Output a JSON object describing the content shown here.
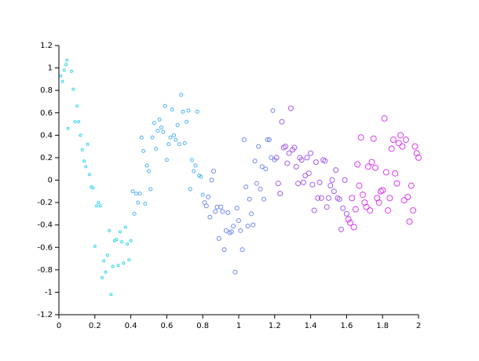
{
  "chart_data": {
    "type": "scatter",
    "xlim": [
      0,
      2
    ],
    "xticks": [
      0,
      0.2,
      0.4,
      0.6,
      0.8,
      1,
      1.2,
      1.4,
      1.6,
      1.8,
      2
    ],
    "ylim": [
      -1.2,
      1.2
    ],
    "yticks": [
      -1.2,
      -1,
      -0.8,
      -0.6,
      -0.4,
      -0.2,
      0,
      0.2,
      0.4,
      0.6,
      0.8,
      1,
      1.2
    ],
    "grid": false,
    "series": [
      {
        "color": "#33d6ee",
        "marker_size": 1.5,
        "x": [
          0.01,
          0.02,
          0.03,
          0.04,
          0.045,
          0.05,
          0.07,
          0.08,
          0.09,
          0.1,
          0.11,
          0.12,
          0.13,
          0.14,
          0.15,
          0.16,
          0.17,
          0.18,
          0.19,
          0.2,
          0.21,
          0.22,
          0.23,
          0.24,
          0.25,
          0.26,
          0.27,
          0.28,
          0.29,
          0.3,
          0.31,
          0.32,
          0.33,
          0.34,
          0.35,
          0.36,
          0.37,
          0.38,
          0.39,
          0.4
        ],
        "y": [
          0.93,
          0.88,
          0.98,
          1.03,
          1.07,
          0.46,
          0.97,
          0.81,
          0.52,
          0.66,
          0.52,
          0.4,
          0.27,
          0.17,
          0.12,
          0.32,
          0.05,
          -0.06,
          -0.07,
          -0.59,
          -0.23,
          -0.2,
          -0.23,
          -0.87,
          -0.72,
          -0.82,
          -0.67,
          -0.45,
          -1.02,
          -0.77,
          -0.54,
          -0.53,
          -0.76,
          -0.46,
          -0.55,
          -0.74,
          -0.42,
          -0.57,
          -0.71,
          -0.54
        ]
      },
      {
        "color": "#4fb2f0",
        "marker_size": 2,
        "x": [
          0.41,
          0.42,
          0.43,
          0.44,
          0.45,
          0.46,
          0.47,
          0.48,
          0.49,
          0.5,
          0.51,
          0.52,
          0.53,
          0.54,
          0.55,
          0.56,
          0.57,
          0.58,
          0.59,
          0.6,
          0.61,
          0.62,
          0.63,
          0.64,
          0.65,
          0.66,
          0.67,
          0.68,
          0.69,
          0.7,
          0.71,
          0.72,
          0.73,
          0.74,
          0.75,
          0.76,
          0.77,
          0.78,
          0.79,
          0.8
        ],
        "y": [
          -0.1,
          -0.3,
          -0.12,
          -0.2,
          -0.12,
          0.38,
          0.26,
          -0.21,
          0.13,
          0.08,
          -0.08,
          0.38,
          0.51,
          0.28,
          0.44,
          0.54,
          0.47,
          0.43,
          0.66,
          0.18,
          0.32,
          0.38,
          0.63,
          0.4,
          0.36,
          0.49,
          0.32,
          0.76,
          0.61,
          0.33,
          0.52,
          0.62,
          -0.08,
          0.18,
          0.08,
          0.13,
          0.61,
          0.04,
          0.03,
          -0.13
        ]
      },
      {
        "color": "#6f86ee",
        "marker_size": 2.5,
        "x": [
          0.81,
          0.82,
          0.83,
          0.84,
          0.85,
          0.86,
          0.87,
          0.88,
          0.89,
          0.9,
          0.91,
          0.92,
          0.93,
          0.94,
          0.95,
          0.96,
          0.97,
          0.98,
          0.99,
          1.0,
          1.01,
          1.02,
          1.03,
          1.04,
          1.05,
          1.06,
          1.07,
          1.08,
          1.09,
          1.1,
          1.11,
          1.12,
          1.13,
          1.14,
          1.15,
          1.16,
          1.17,
          1.18,
          1.19,
          1.2
        ],
        "y": [
          -0.2,
          -0.23,
          -0.15,
          -0.33,
          0.0,
          0.08,
          -0.28,
          -0.24,
          -0.52,
          -0.24,
          -0.28,
          -0.62,
          -0.45,
          -0.29,
          -0.47,
          -0.46,
          -0.41,
          -0.82,
          -0.25,
          -0.36,
          -0.45,
          -0.62,
          0.36,
          -0.06,
          -0.41,
          -0.17,
          -0.3,
          -0.4,
          0.17,
          -0.03,
          0.3,
          -0.08,
          0.12,
          -0.17,
          0.1,
          0.36,
          0.36,
          0.2,
          0.62,
          0.18
        ]
      },
      {
        "color": "#a35cee",
        "marker_size": 3,
        "x": [
          1.21,
          1.22,
          1.23,
          1.24,
          1.25,
          1.26,
          1.27,
          1.28,
          1.29,
          1.3,
          1.31,
          1.32,
          1.33,
          1.34,
          1.35,
          1.36,
          1.37,
          1.38,
          1.39,
          1.4,
          1.41,
          1.42,
          1.43,
          1.44,
          1.45,
          1.46,
          1.47,
          1.48,
          1.49,
          1.5,
          1.51,
          1.52,
          1.53,
          1.54,
          1.55,
          1.56,
          1.57,
          1.58,
          1.59,
          1.6
        ],
        "y": [
          0.2,
          -0.03,
          -0.12,
          0.52,
          0.29,
          0.3,
          0.15,
          0.24,
          0.64,
          0.27,
          0.29,
          0.12,
          -0.03,
          0.2,
          0.18,
          -0.02,
          0.04,
          0.2,
          0.06,
          0.24,
          -0.04,
          -0.27,
          0.16,
          -0.16,
          -0.02,
          -0.16,
          0.18,
          0.17,
          -0.24,
          -0.16,
          -0.05,
          0.0,
          -0.1,
          0.09,
          -0.16,
          -0.17,
          -0.44,
          -0.25,
          0.0,
          -0.3
        ]
      },
      {
        "color": "#d93cee",
        "marker_size": 3.5,
        "x": [
          1.61,
          1.62,
          1.63,
          1.64,
          1.65,
          1.66,
          1.67,
          1.68,
          1.69,
          1.7,
          1.71,
          1.72,
          1.73,
          1.74,
          1.75,
          1.76,
          1.77,
          1.78,
          1.79,
          1.8,
          1.81,
          1.82,
          1.83,
          1.84,
          1.85,
          1.86,
          1.87,
          1.88,
          1.89,
          1.9,
          1.91,
          1.92,
          1.93,
          1.94,
          1.95,
          1.96,
          1.97,
          1.98,
          1.99,
          2.0
        ],
        "y": [
          -0.35,
          -0.38,
          -0.16,
          -0.42,
          -0.26,
          0.14,
          -0.05,
          0.38,
          -0.13,
          -0.2,
          -0.24,
          0.12,
          -0.27,
          0.16,
          0.37,
          0.11,
          -0.16,
          -0.2,
          -0.1,
          -0.09,
          0.55,
          0.07,
          -0.27,
          -0.16,
          0.28,
          0.36,
          0.06,
          -0.03,
          0.33,
          0.4,
          0.3,
          -0.18,
          0.36,
          -0.15,
          -0.37,
          -0.05,
          -0.27,
          0.3,
          0.24,
          0.2
        ]
      }
    ]
  }
}
